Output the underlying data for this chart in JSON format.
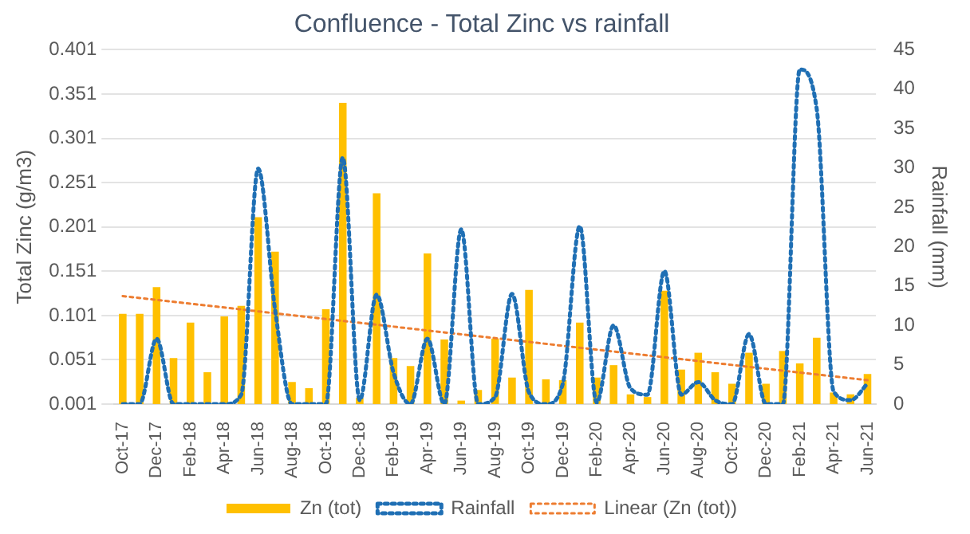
{
  "chart_data": {
    "type": "bar",
    "title": "Confluence - Total Zinc vs rainfall",
    "ylabel": "Total Zinc (g/m3)",
    "y2label": "Rainfall (mm)",
    "categories": [
      "Oct-17",
      null,
      "Dec-17",
      null,
      "Feb-18",
      null,
      "Apr-18",
      null,
      "Jun-18",
      null,
      "Aug-18",
      null,
      "Oct-18",
      null,
      "Dec-18",
      null,
      "Feb-19",
      null,
      "Apr-19",
      null,
      "Jun-19",
      null,
      "Aug-19",
      null,
      "Oct-19",
      null,
      "Dec-19",
      null,
      "Feb-20",
      null,
      "Apr-20",
      null,
      "Jun-20",
      null,
      "Aug-20",
      null,
      "Oct-20",
      null,
      "Dec-20",
      null,
      "Feb-21",
      null,
      "Apr-21",
      null,
      "Jun-21"
    ],
    "series": [
      {
        "name": "Zn (tot)",
        "color": "#ffc000",
        "values": [
          0.103,
          0.103,
          0.133,
          0.053,
          0.093,
          0.037,
          0.1,
          0.112,
          0.212,
          0.173,
          0.026,
          0.019,
          0.108,
          0.341,
          0.008,
          0.239,
          0.053,
          0.044,
          0.171,
          0.074,
          0.005,
          0.017,
          0.075,
          0.031,
          0.13,
          0.029,
          0.028,
          0.093,
          0.031,
          0.045,
          0.012,
          0.009,
          0.129,
          0.04,
          0.059,
          0.037,
          0.024,
          0.059,
          0.024,
          0.061,
          0.047,
          0.076,
          0.014,
          0.012,
          0.035
        ]
      },
      {
        "name": "Rainfall",
        "type": "line",
        "axis": "y2",
        "color": "#1f6fb4",
        "line_style": "dotted",
        "values": [
          0,
          0,
          8.3,
          0,
          0,
          0,
          0,
          1.2,
          29.9,
          12,
          0,
          0,
          0,
          31.3,
          0.5,
          13.9,
          4,
          0,
          8.3,
          0,
          22.2,
          0,
          0.9,
          14,
          1.5,
          0,
          2.6,
          22.6,
          0.2,
          10,
          2,
          1.2,
          16.9,
          1.2,
          2.8,
          0.5,
          0,
          8.9,
          0,
          0,
          42.5,
          37.5,
          1.6,
          0.5,
          2.6
        ]
      },
      {
        "name": "Linear (Zn (tot))",
        "type": "line",
        "color": "#ed7d31",
        "line_style": "dotted",
        "x": [
          "Oct-17",
          "Jun-21"
        ],
        "values": [
          0.123,
          0.028
        ]
      }
    ],
    "ylim": [
      0.001,
      0.401
    ],
    "yticks": [
      0.001,
      0.051,
      0.101,
      0.151,
      0.201,
      0.251,
      0.301,
      0.351,
      0.401
    ],
    "y2lim": [
      0,
      45
    ],
    "y2ticks": [
      0,
      5,
      10,
      15,
      20,
      25,
      30,
      35,
      40,
      45
    ],
    "grid": "y",
    "legend": "bottom",
    "marker": "none"
  }
}
